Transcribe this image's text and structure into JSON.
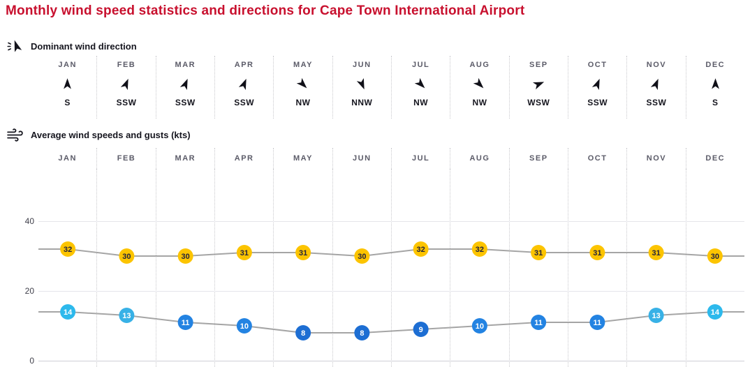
{
  "title": "Monthly wind speed statistics and directions for Cape Town International Airport",
  "theme": {
    "title_color": "#c8102e",
    "line_color": "#a5a5a5",
    "grid_dot_color": "#c8c8cc",
    "gust_color": "#fcc400"
  },
  "months": [
    "JAN",
    "FEB",
    "MAR",
    "APR",
    "MAY",
    "JUN",
    "JUL",
    "AUG",
    "SEP",
    "OCT",
    "NOV",
    "DEC"
  ],
  "direction_section": {
    "heading": "Dominant wind direction",
    "directions": [
      "S",
      "SSW",
      "SSW",
      "SSW",
      "NW",
      "NNW",
      "NW",
      "NW",
      "WSW",
      "SSW",
      "SSW",
      "S"
    ]
  },
  "speed_section": {
    "heading": "Average wind speeds and gusts (kts)"
  },
  "chart_data": {
    "type": "line",
    "title": "Average wind speeds and gusts (kts)",
    "categories": [
      "JAN",
      "FEB",
      "MAR",
      "APR",
      "MAY",
      "JUN",
      "JUL",
      "AUG",
      "SEP",
      "OCT",
      "NOV",
      "DEC"
    ],
    "yticks": [
      0,
      20,
      40
    ],
    "ylim": [
      0,
      56
    ],
    "grid": "dotted-vertical",
    "legend": "none",
    "series": [
      {
        "id": "gusts",
        "name": "Wind gusts",
        "values": [
          32,
          30,
          30,
          31,
          31,
          30,
          32,
          32,
          31,
          31,
          31,
          30
        ],
        "color": "#fcc400",
        "label_color": "#23233c"
      },
      {
        "id": "wind",
        "name": "Average wind speed",
        "values": [
          14,
          13,
          11,
          10,
          8,
          8,
          9,
          10,
          11,
          11,
          13,
          14
        ],
        "colors": [
          "#2db9ec",
          "#38b1e6",
          "#2383e2",
          "#2383e2",
          "#1d6ed3",
          "#1d6ed3",
          "#1d6ed3",
          "#2383e2",
          "#2383e2",
          "#2383e2",
          "#38b1e6",
          "#2db9ec"
        ],
        "label_color": "#ffffff"
      }
    ]
  }
}
